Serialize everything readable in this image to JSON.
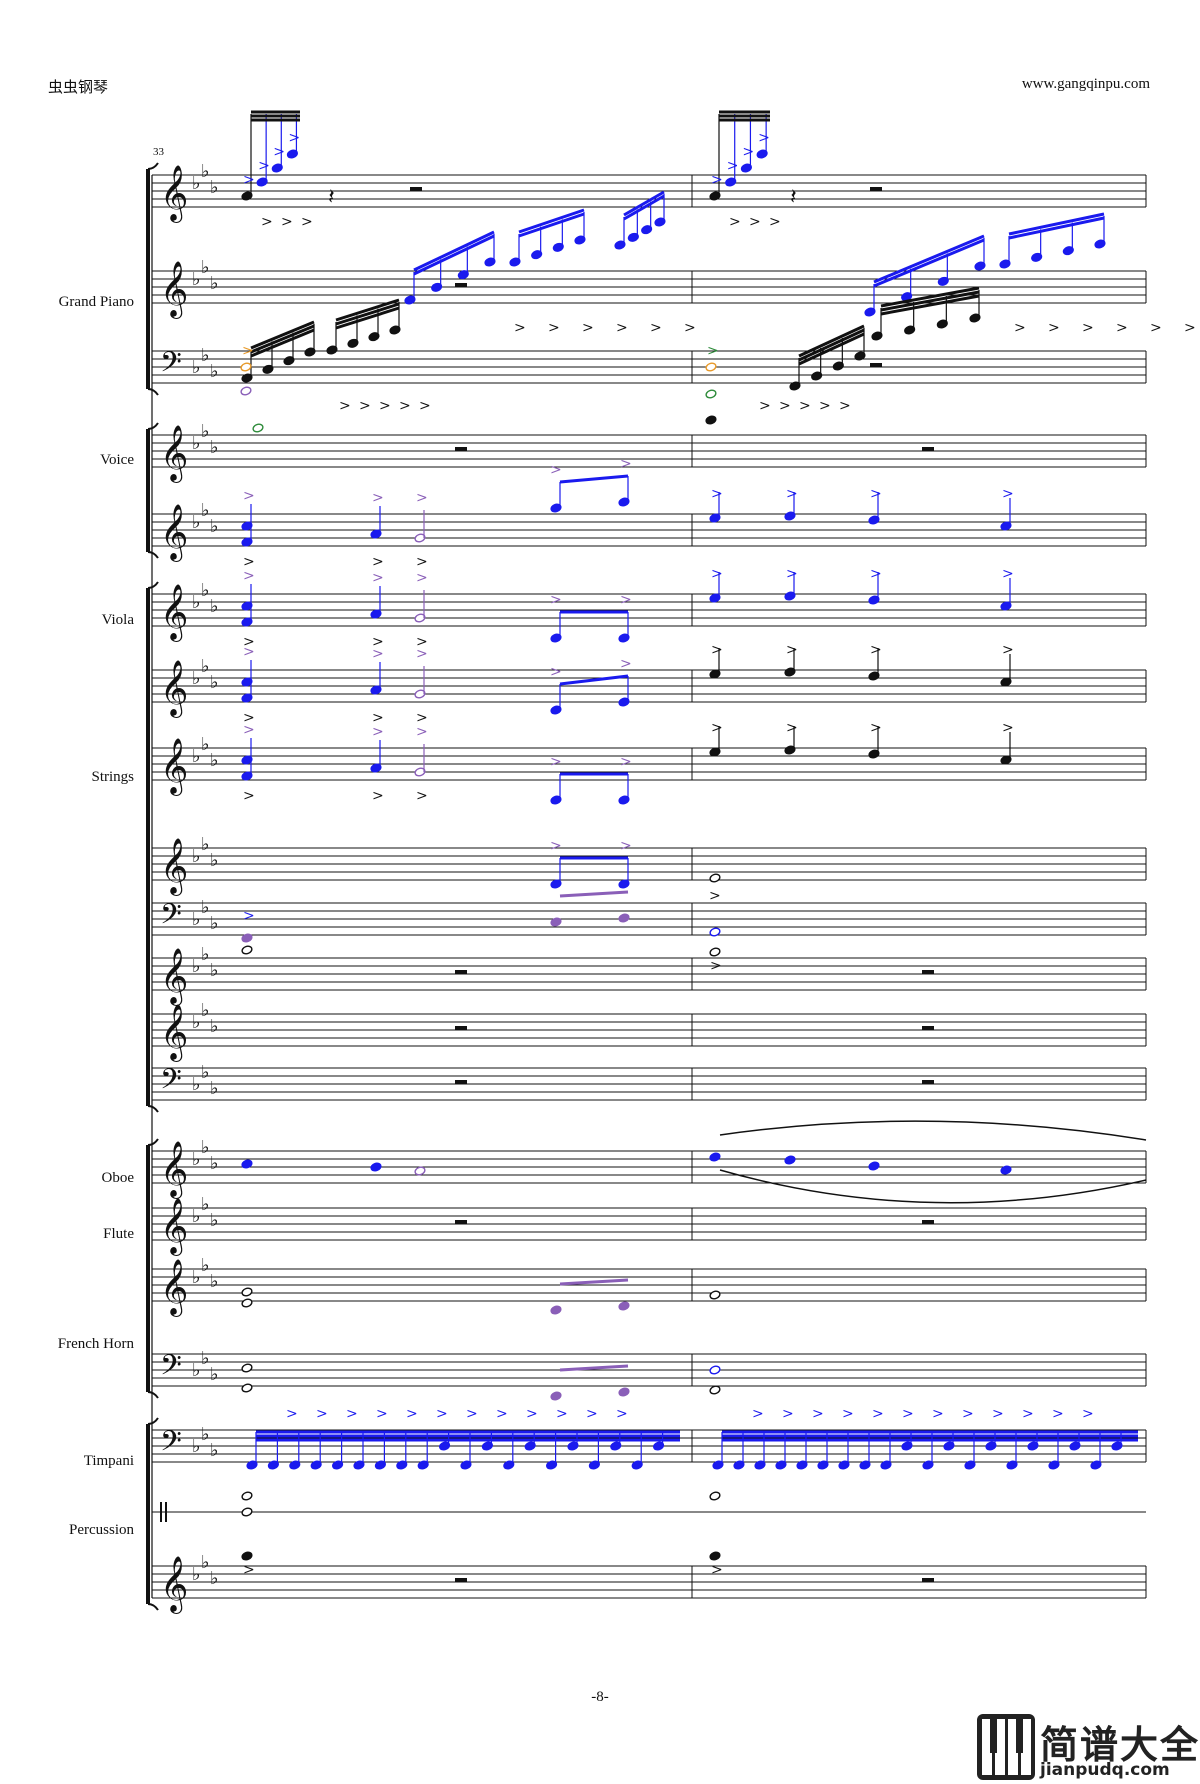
{
  "header": {
    "left": "虫虫钢琴",
    "right": "www.gangqinpu.com"
  },
  "measure_number": "33",
  "page_number": "-8-",
  "instruments": {
    "grand_piano": "Grand Piano",
    "voice": "Voice",
    "viola": "Viola",
    "strings": "Strings",
    "oboe": "Oboe",
    "flute": "Flute",
    "french_horn": "French Horn",
    "timpani": "Timpani",
    "percussion": "Percussion"
  },
  "logo": {
    "name": "简谱大全",
    "url": "jianpudq.com"
  },
  "colors": {
    "black": "#111111",
    "blue": "#1a1aee",
    "purple": "#8a5fb8",
    "orange": "#e89a2a",
    "green": "#2e8b3a"
  }
}
